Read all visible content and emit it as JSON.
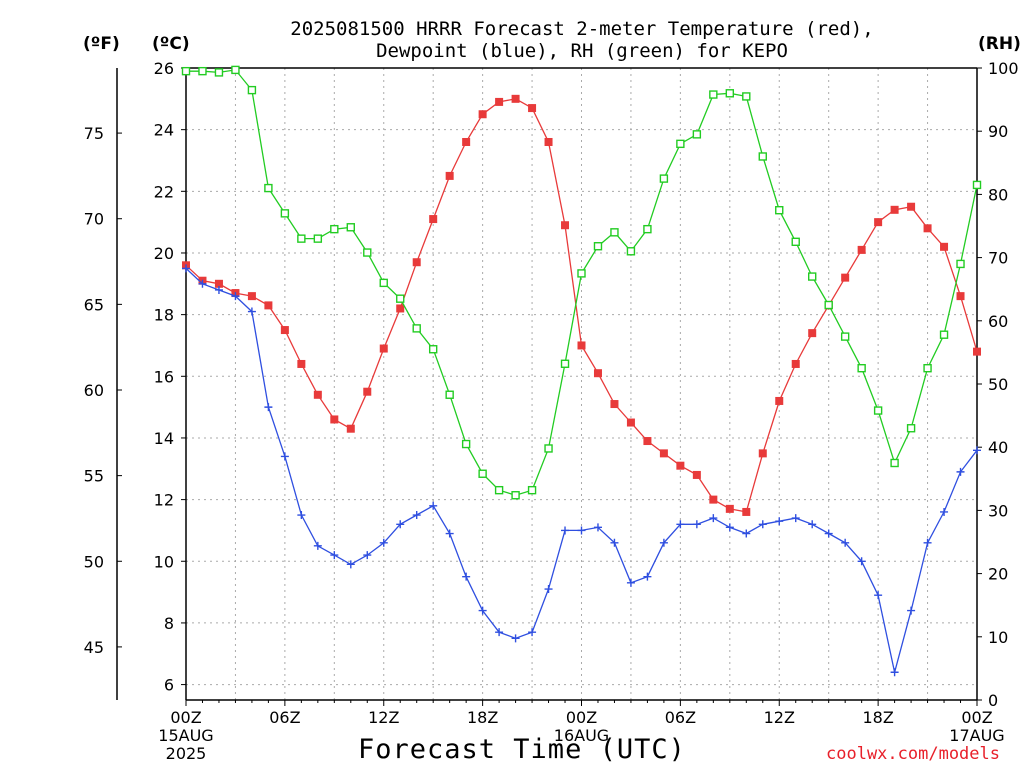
{
  "title_line1": "2025081500 HRRR Forecast 2-meter Temperature (red),",
  "title_line2": "Dewpoint (blue), RH (green) for KEPO",
  "unit_f": "(ºF)",
  "unit_c": "(ºC)",
  "unit_rh": "(RH)",
  "xlabel": "Forecast Time (UTC)",
  "credit": "coolwx.com/models",
  "colors": {
    "temperature": "#e83a3a",
    "dewpoint": "#2f4fe0",
    "rh": "#22cc22",
    "grid": "#aaaaaa"
  },
  "chart_data": {
    "type": "line",
    "title": "2025081500 HRRR Forecast 2-meter Temperature (red), Dewpoint (blue), RH (green) for KEPO",
    "xlabel": "Forecast Time (UTC)",
    "x": [
      0,
      1,
      2,
      3,
      4,
      5,
      6,
      7,
      8,
      9,
      10,
      11,
      12,
      13,
      14,
      15,
      16,
      17,
      18,
      19,
      20,
      21,
      22,
      23,
      24,
      25,
      26,
      27,
      28,
      29,
      30,
      31,
      32,
      33,
      34,
      35,
      36,
      37,
      38,
      39,
      40,
      41,
      42,
      43,
      44,
      45,
      46,
      47,
      48
    ],
    "x_ticks": [
      {
        "x": 0,
        "label": "00Z",
        "sub1": "15AUG",
        "sub2": "2025"
      },
      {
        "x": 6,
        "label": "06Z",
        "sub1": "",
        "sub2": ""
      },
      {
        "x": 12,
        "label": "12Z",
        "sub1": "",
        "sub2": ""
      },
      {
        "x": 18,
        "label": "18Z",
        "sub1": "",
        "sub2": ""
      },
      {
        "x": 24,
        "label": "00Z",
        "sub1": "16AUG",
        "sub2": ""
      },
      {
        "x": 30,
        "label": "06Z",
        "sub1": "",
        "sub2": ""
      },
      {
        "x": 36,
        "label": "12Z",
        "sub1": "",
        "sub2": ""
      },
      {
        "x": 42,
        "label": "18Z",
        "sub1": "",
        "sub2": ""
      },
      {
        "x": 48,
        "label": "00Z",
        "sub1": "17AUG",
        "sub2": ""
      }
    ],
    "left_axis_c": {
      "range": [
        5.5,
        26
      ],
      "ticks": [
        6,
        8,
        10,
        12,
        14,
        16,
        18,
        20,
        22,
        24,
        26
      ]
    },
    "left_axis_f": {
      "ticks": [
        45,
        50,
        55,
        60,
        65,
        70,
        75
      ]
    },
    "right_axis_rh": {
      "range": [
        0,
        100
      ],
      "ticks": [
        0,
        10,
        20,
        30,
        40,
        50,
        60,
        70,
        80,
        90,
        100
      ]
    },
    "grid": true,
    "series": [
      {
        "name": "Temperature",
        "axis": "C",
        "marker": "filled-square",
        "values": [
          19.6,
          19.1,
          19.0,
          18.7,
          18.6,
          18.3,
          17.5,
          16.4,
          15.4,
          14.6,
          14.3,
          15.5,
          16.9,
          18.2,
          19.7,
          21.1,
          22.5,
          23.6,
          24.5,
          24.9,
          25.0,
          24.7,
          23.6,
          20.9,
          17.0,
          16.1,
          15.1,
          14.5,
          13.9,
          13.5,
          13.1,
          12.8,
          12.0,
          11.7,
          11.6,
          13.5,
          15.2,
          16.4,
          17.4,
          18.3,
          19.2,
          20.1,
          21.0,
          21.4,
          21.5,
          20.8,
          20.2,
          18.6,
          16.8
        ]
      },
      {
        "name": "Dewpoint",
        "axis": "C",
        "marker": "plus",
        "values": [
          19.5,
          19.0,
          18.8,
          18.6,
          18.1,
          15.0,
          13.4,
          11.5,
          10.5,
          10.2,
          9.9,
          10.2,
          10.6,
          11.2,
          11.5,
          11.8,
          10.9,
          9.5,
          8.4,
          7.7,
          7.5,
          7.7,
          9.1,
          11.0,
          11.0,
          11.1,
          10.6,
          9.3,
          9.5,
          10.6,
          11.2,
          11.2,
          11.4,
          11.1,
          10.9,
          11.2,
          11.3,
          11.4,
          11.2,
          10.9,
          10.6,
          10.0,
          8.9,
          6.4,
          8.4,
          10.6,
          11.6,
          12.9,
          13.6
        ]
      },
      {
        "name": "RH",
        "axis": "RH",
        "marker": "open-square",
        "values": [
          99.5,
          99.5,
          99.3,
          99.7,
          96.5,
          81.0,
          77.0,
          73.0,
          73.0,
          74.5,
          74.8,
          70.8,
          66.0,
          63.5,
          58.8,
          55.5,
          48.3,
          40.5,
          35.8,
          33.2,
          32.4,
          33.2,
          39.8,
          53.2,
          67.5,
          71.8,
          74.0,
          71.0,
          74.5,
          82.5,
          88.0,
          89.5,
          95.8,
          96.0,
          95.5,
          86.0,
          77.5,
          72.5,
          67.0,
          62.5,
          57.5,
          52.5,
          45.8,
          37.5,
          43.0,
          52.5,
          57.8,
          69.0,
          81.5
        ]
      }
    ]
  }
}
